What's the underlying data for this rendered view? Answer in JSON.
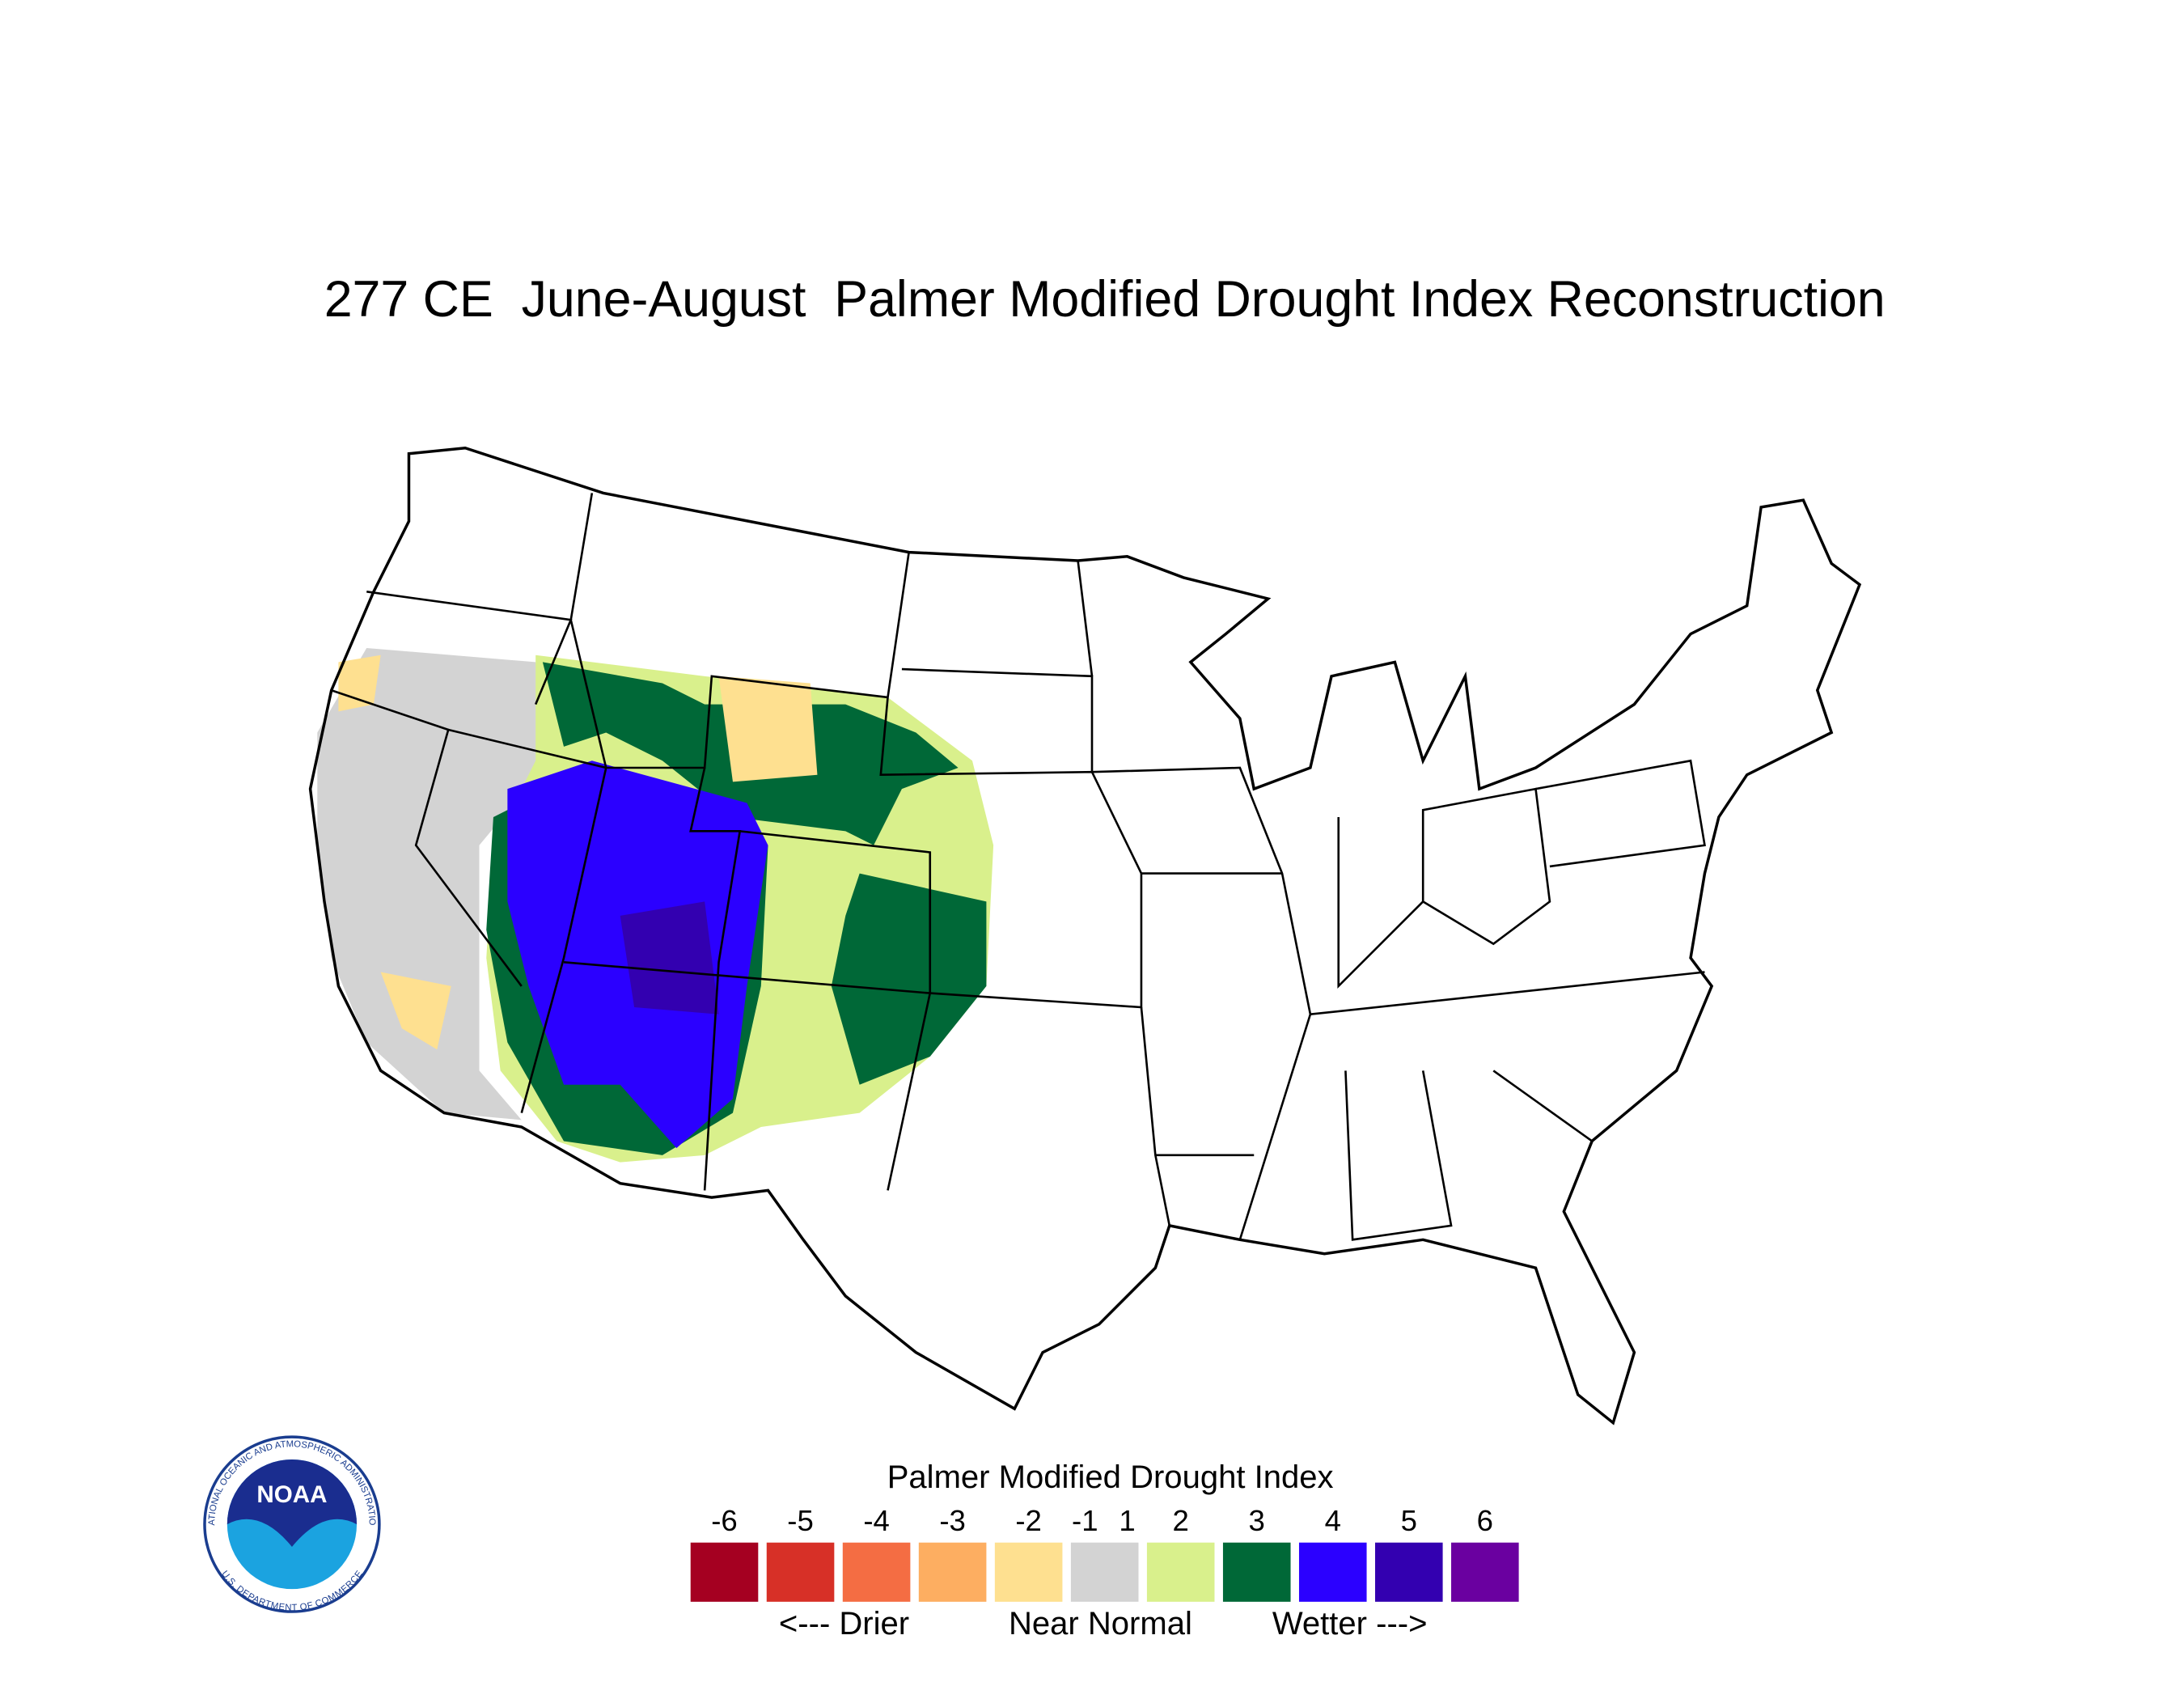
{
  "title": "277 CE  June-August  Palmer Modified Drought Index Reconstruction",
  "legend": {
    "title": "Palmer Modified Drought Index",
    "ticks": [
      -6,
      -5,
      -4,
      -3,
      -2,
      -1,
      1,
      2,
      3,
      4,
      5,
      6
    ],
    "colors": [
      "#a50021",
      "#d73027",
      "#f46d43",
      "#fdae61",
      "#fee090",
      "#d3d3d3",
      "#d9f08c",
      "#006837",
      "#2b00ff",
      "#3300b0",
      "#6a00a0"
    ],
    "notes": [
      "<--- Drier",
      "Near Normal",
      "Wetter --->"
    ]
  },
  "logo": {
    "text": "NOAA",
    "ring_top": "NATIONAL OCEANIC AND ATMOSPHERIC ADMINISTRATION",
    "ring_bottom": "U.S. DEPARTMENT OF COMMERCE"
  }
}
